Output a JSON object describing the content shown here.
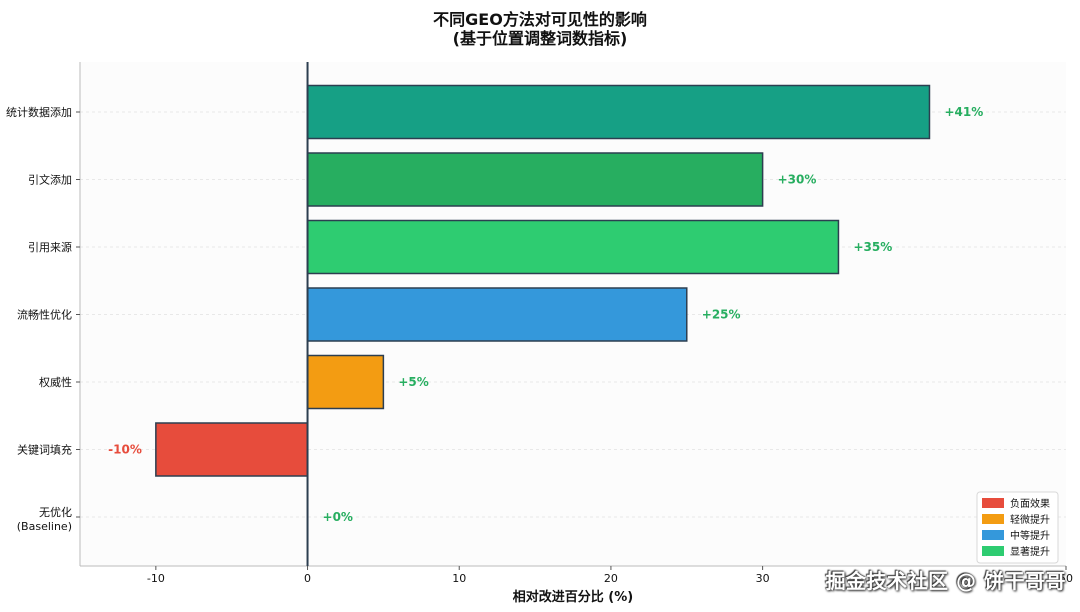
{
  "chart_data": {
    "type": "bar",
    "orientation": "horizontal",
    "title_line1": "不同GEO方法对可见性的影响",
    "title_line2": "(基于位置调整词数指标)",
    "xlabel": "相对改进百分比 (%)",
    "ylabel": "",
    "xlim": [
      -15,
      50
    ],
    "x_ticks": [
      -10,
      0,
      10,
      20,
      30,
      50
    ],
    "grid": "horizontal",
    "legend_position": "bottom-right",
    "categories": [
      {
        "label": "统计数据添加",
        "value": 41,
        "value_label": "+41%",
        "group": "显著提升",
        "color": "#16a085"
      },
      {
        "label": "引文添加",
        "value": 30,
        "value_label": "+30%",
        "group": "显著提升",
        "color": "#27ae60"
      },
      {
        "label": "引用来源",
        "value": 35,
        "value_label": "+35%",
        "group": "显著提升",
        "color": "#2ecc71"
      },
      {
        "label": "流畅性优化",
        "value": 25,
        "value_label": "+25%",
        "group": "中等提升",
        "color": "#3498db"
      },
      {
        "label": "权威性",
        "value": 5,
        "value_label": "+5%",
        "group": "轻微提升",
        "color": "#f39c12"
      },
      {
        "label": "关键词填充",
        "value": -10,
        "value_label": "-10%",
        "group": "负面效果",
        "color": "#e74c3c"
      },
      {
        "label_line1": "无优化",
        "label_line2": "(Baseline)",
        "value": 0,
        "value_label": "+0%",
        "group": "轻微提升",
        "color": "#f39c12"
      }
    ],
    "legend": [
      {
        "label": "负面效果",
        "color": "#e74c3c"
      },
      {
        "label": "轻微提升",
        "color": "#f39c12"
      },
      {
        "label": "中等提升",
        "color": "#3498db"
      },
      {
        "label": "显著提升",
        "color": "#2ecc71"
      }
    ],
    "colors": {
      "positive_label": "#27ae60",
      "negative_label": "#e74c3c",
      "bar_edge": "#2c3e50",
      "zero_line": "#2c3e50"
    }
  },
  "watermark": "掘金技术社区 @ 饼干哥哥"
}
